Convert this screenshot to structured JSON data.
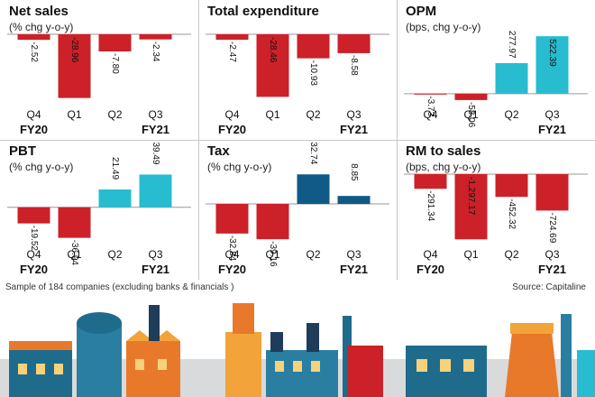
{
  "chart_data": [
    {
      "type": "bar",
      "title": "Net sales",
      "subtitle": "(% chg y-o-y)",
      "categories": [
        "Q4",
        "Q1",
        "Q2",
        "Q3"
      ],
      "fiscal_labels": [
        "FY20",
        "FY21"
      ],
      "values": [
        -2.52,
        -28.96,
        -7.8,
        -2.34
      ],
      "value_labels": [
        "-2.52",
        "-28.96",
        "-7.80",
        "-2.34"
      ],
      "ylim": [
        -32,
        0
      ],
      "colors": [
        "#cc2128",
        "#cc2128",
        "#cc2128",
        "#cc2128"
      ]
    },
    {
      "type": "bar",
      "title": "Total expenditure",
      "subtitle": "",
      "categories": [
        "Q4",
        "Q1",
        "Q2",
        "Q3"
      ],
      "fiscal_labels": [
        "FY20",
        "FY21"
      ],
      "values": [
        -2.47,
        -28.46,
        -10.93,
        -8.58
      ],
      "value_labels": [
        "-2.47",
        "-28.46",
        "-10.93",
        "-8.58"
      ],
      "ylim": [
        -32,
        0
      ],
      "colors": [
        "#cc2128",
        "#cc2128",
        "#cc2128",
        "#cc2128"
      ]
    },
    {
      "type": "bar",
      "title": "OPM",
      "subtitle": "(bps, chg y-o-y)",
      "categories": [
        "Q4",
        "Q1",
        "Q2",
        "Q3"
      ],
      "fiscal_labels": [
        "",
        "FY21"
      ],
      "values": [
        -3.73,
        -58.06,
        277.97,
        522.39
      ],
      "value_labels": [
        "-3.73",
        "-58.06",
        "277.97",
        "522.39"
      ],
      "ylim": [
        -100,
        540
      ],
      "colors": [
        "#cc2128",
        "#cc2128",
        "#27bcd0",
        "#27bcd0"
      ]
    },
    {
      "type": "bar",
      "title": "PBT",
      "subtitle": "(% chg y-o-y)",
      "categories": [
        "Q4",
        "Q1",
        "Q2",
        "Q3"
      ],
      "fiscal_labels": [
        "FY20",
        "FY21"
      ],
      "values": [
        -19.52,
        -36.94,
        21.49,
        39.49
      ],
      "value_labels": [
        "-19.52",
        "-36.94",
        "21.49",
        "39.49"
      ],
      "ylim": [
        -45,
        40
      ],
      "colors": [
        "#cc2128",
        "#cc2128",
        "#27bcd0",
        "#27bcd0"
      ]
    },
    {
      "type": "bar",
      "title": "Tax",
      "subtitle": "(% chg y-o-y)",
      "categories": [
        "Q4",
        "Q1",
        "Q2",
        "Q3"
      ],
      "fiscal_labels": [
        "FY20",
        "FY21"
      ],
      "values": [
        -32.84,
        -39.16,
        32.74,
        8.85
      ],
      "value_labels": [
        "-32.84",
        "-39.16",
        "32.74",
        "8.85"
      ],
      "ylim": [
        -45,
        33
      ],
      "colors": [
        "#cc2128",
        "#cc2128",
        "#0f5a87",
        "#0f5a87"
      ]
    },
    {
      "type": "bar",
      "title": "RM to sales",
      "subtitle": "(bps, chg y-o-y)",
      "categories": [
        "Q4",
        "Q1",
        "Q2",
        "Q3"
      ],
      "fiscal_labels": [
        "FY20",
        "FY21"
      ],
      "values": [
        -291.34,
        -1297.17,
        -452.32,
        -724.69
      ],
      "value_labels": [
        "-291.34",
        "-1,297.17",
        "-452.32",
        "-724.69"
      ],
      "ylim": [
        -1400,
        0
      ],
      "colors": [
        "#cc2128",
        "#cc2128",
        "#cc2128",
        "#cc2128"
      ]
    }
  ],
  "footer": {
    "note": "Sample of 184 companies (excluding banks & financials )",
    "source": "Source: Capitaline"
  }
}
